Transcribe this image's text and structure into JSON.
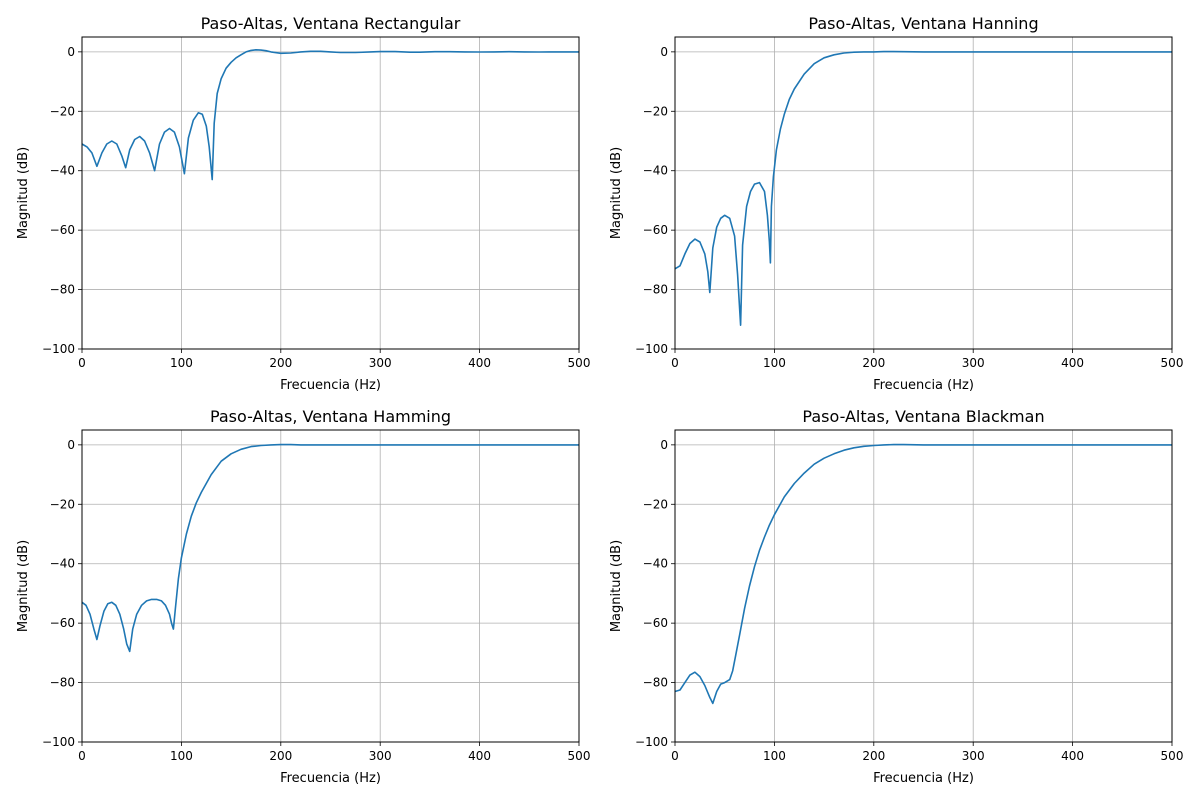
{
  "chart_data": [
    {
      "type": "line",
      "title": "Paso-Altas, Ventana Rectangular",
      "xlabel": "Frecuencia (Hz)",
      "ylabel": "Magnitud (dB)",
      "xlim": [
        0,
        500
      ],
      "ylim": [
        -100,
        5
      ],
      "xticks": [
        "0",
        "100",
        "200",
        "300",
        "400",
        "500"
      ],
      "yticks": [
        "0",
        "−20",
        "−40",
        "−60",
        "−80",
        "−100"
      ],
      "grid": true,
      "color": "#1f77b4",
      "series": [
        {
          "x": [
            0,
            5,
            10,
            15,
            20,
            25,
            30,
            35,
            40,
            44,
            48,
            53,
            58,
            63,
            68,
            73,
            78,
            83,
            88,
            93,
            98,
            103,
            107,
            112,
            117,
            121,
            125,
            128,
            131,
            133,
            136,
            140,
            145,
            150,
            155,
            160,
            165,
            170,
            175,
            180,
            185,
            190,
            200,
            210,
            220,
            230,
            240,
            250,
            260,
            275,
            290,
            300,
            315,
            330,
            340,
            355,
            370,
            385,
            400,
            415,
            430,
            445,
            460,
            470,
            485,
            500
          ],
          "y": [
            -31,
            -32,
            -34,
            -38.5,
            -34,
            -31,
            -30,
            -31,
            -35,
            -39,
            -33,
            -29.5,
            -28.5,
            -30,
            -34,
            -40,
            -31,
            -27,
            -25.8,
            -27,
            -32,
            -41,
            -29,
            -23,
            -20.5,
            -21,
            -25,
            -32,
            -43,
            -24,
            -14,
            -9,
            -5.5,
            -3.5,
            -2,
            -1,
            0,
            0.5,
            0.7,
            0.6,
            0.4,
            0,
            -0.5,
            -0.4,
            0,
            0.2,
            0.2,
            0,
            -0.2,
            -0.2,
            0,
            0.1,
            0.1,
            -0.1,
            -0.1,
            0.05,
            0.05,
            0,
            -0.05,
            0,
            0.05,
            0,
            -0.05,
            0,
            0,
            0
          ]
        }
      ]
    },
    {
      "type": "line",
      "title": "Paso-Altas, Ventana Hanning",
      "xlabel": "Frecuencia (Hz)",
      "ylabel": "Magnitud (dB)",
      "xlim": [
        0,
        500
      ],
      "ylim": [
        -100,
        5
      ],
      "xticks": [
        "0",
        "100",
        "200",
        "300",
        "400",
        "500"
      ],
      "yticks": [
        "0",
        "−20",
        "−40",
        "−60",
        "−80",
        "−100"
      ],
      "grid": true,
      "color": "#1f77b4",
      "series": [
        {
          "x": [
            0,
            5,
            10,
            15,
            20,
            25,
            30,
            33,
            35,
            38,
            42,
            46,
            50,
            55,
            60,
            63,
            66,
            68,
            72,
            76,
            80,
            85,
            90,
            93,
            95,
            96,
            97,
            99,
            102,
            106,
            110,
            115,
            120,
            130,
            140,
            150,
            160,
            170,
            180,
            190,
            200,
            210,
            220,
            250,
            300,
            400,
            500
          ],
          "y": [
            -73,
            -72,
            -68,
            -64.5,
            -63,
            -64,
            -68,
            -74,
            -81,
            -66,
            -59,
            -56,
            -55,
            -56,
            -62,
            -75,
            -92,
            -65,
            -52,
            -47,
            -44.5,
            -44,
            -47,
            -55,
            -64,
            -71,
            -52,
            -42,
            -33,
            -26,
            -21,
            -16,
            -12.5,
            -7.5,
            -4,
            -2,
            -1,
            -0.4,
            -0.1,
            0,
            0,
            0.1,
            0.1,
            0,
            0,
            0,
            0
          ]
        }
      ]
    },
    {
      "type": "line",
      "title": "Paso-Altas, Ventana Hamming",
      "xlabel": "Frecuencia (Hz)",
      "ylabel": "Magnitud (dB)",
      "xlim": [
        0,
        500
      ],
      "ylim": [
        -100,
        5
      ],
      "xticks": [
        "0",
        "100",
        "200",
        "300",
        "400",
        "500"
      ],
      "yticks": [
        "0",
        "−20",
        "−40",
        "−60",
        "−80",
        "−100"
      ],
      "grid": true,
      "color": "#1f77b4",
      "series": [
        {
          "x": [
            0,
            4,
            8,
            12,
            15,
            18,
            22,
            26,
            30,
            34,
            38,
            42,
            45,
            48,
            51,
            55,
            60,
            65,
            70,
            75,
            80,
            84,
            88,
            90,
            92,
            94,
            97,
            100,
            105,
            110,
            115,
            120,
            130,
            140,
            150,
            160,
            170,
            180,
            190,
            200,
            210,
            220,
            250,
            300,
            400,
            500
          ],
          "y": [
            -53,
            -54,
            -57,
            -62,
            -65.5,
            -61,
            -56,
            -53.5,
            -53,
            -54,
            -57,
            -62,
            -67,
            -69.5,
            -62,
            -57,
            -54,
            -52.5,
            -52,
            -52,
            -52.5,
            -54,
            -57,
            -60,
            -62,
            -55,
            -45,
            -38,
            -30,
            -24,
            -19.5,
            -16,
            -10,
            -5.5,
            -3,
            -1.5,
            -0.6,
            -0.2,
            0,
            0.1,
            0.1,
            0,
            0,
            0,
            0,
            0
          ]
        }
      ]
    },
    {
      "type": "line",
      "title": "Paso-Altas, Ventana Blackman",
      "xlabel": "Frecuencia (Hz)",
      "ylabel": "Magnitud (dB)",
      "xlim": [
        0,
        500
      ],
      "ylim": [
        -100,
        5
      ],
      "xticks": [
        "0",
        "100",
        "200",
        "300",
        "400",
        "500"
      ],
      "yticks": [
        "0",
        "−20",
        "−40",
        "−60",
        "−80",
        "−100"
      ],
      "grid": true,
      "color": "#1f77b4",
      "series": [
        {
          "x": [
            0,
            5,
            10,
            15,
            20,
            25,
            30,
            35,
            38,
            42,
            46,
            50,
            55,
            58,
            61,
            65,
            70,
            75,
            80,
            85,
            90,
            95,
            100,
            110,
            120,
            130,
            140,
            150,
            160,
            170,
            180,
            190,
            200,
            210,
            220,
            230,
            250,
            300,
            400,
            500
          ],
          "y": [
            -83,
            -82.5,
            -80,
            -77.5,
            -76.5,
            -78,
            -81,
            -85,
            -87,
            -83,
            -80.5,
            -80,
            -79,
            -76,
            -71,
            -64,
            -55,
            -47.5,
            -41,
            -35.5,
            -31,
            -27,
            -23.5,
            -17.5,
            -13,
            -9.5,
            -6.5,
            -4.5,
            -3,
            -1.8,
            -1,
            -0.5,
            -0.2,
            0,
            0.1,
            0.1,
            0,
            0,
            0,
            0
          ]
        }
      ]
    }
  ]
}
